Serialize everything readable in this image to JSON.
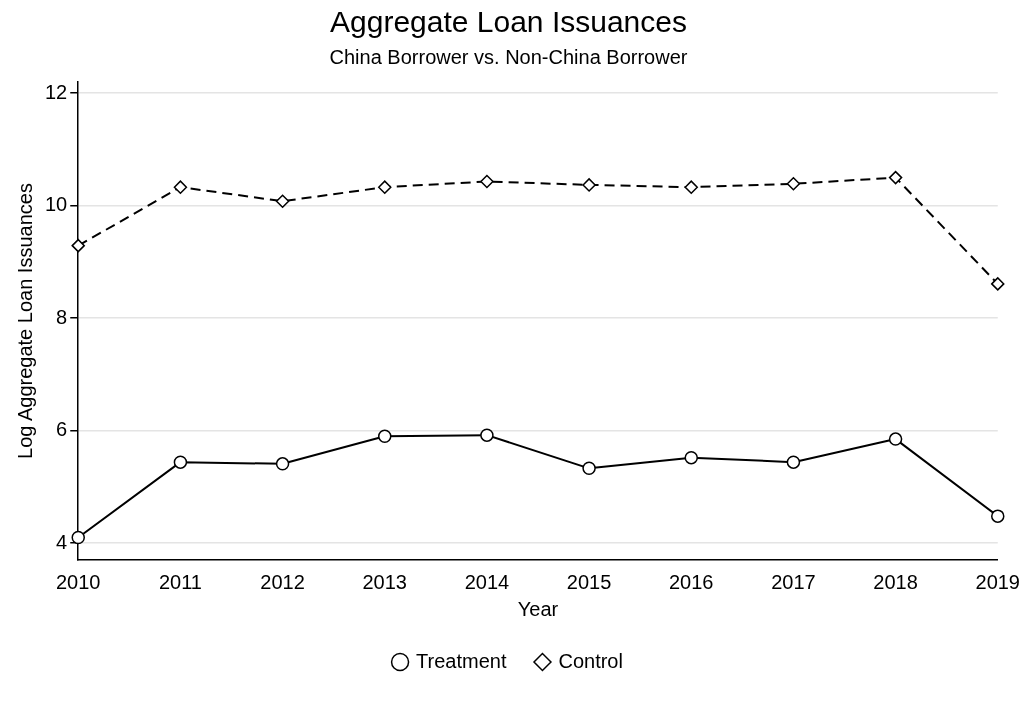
{
  "chart_data": {
    "type": "line",
    "title": "Aggregate Loan Issuances",
    "subtitle": "China Borrower vs. Non-China Borrower",
    "xlabel": "Year",
    "ylabel": "Log Aggregate Loan Issuances",
    "categories": [
      "2010",
      "2011",
      "2012",
      "2013",
      "2014",
      "2015",
      "2016",
      "2017",
      "2018",
      "2019"
    ],
    "series": [
      {
        "name": "Treatment",
        "color": "#000000",
        "marker": "circle",
        "line_style": "solid",
        "values": [
          4.1,
          5.44,
          5.41,
          5.9,
          5.92,
          5.33,
          5.52,
          5.44,
          5.85,
          4.48
        ]
      },
      {
        "name": "Control",
        "color": "#000000",
        "marker": "diamond",
        "line_style": "dashed",
        "values": [
          9.29,
          10.33,
          10.08,
          10.33,
          10.43,
          10.37,
          10.33,
          10.39,
          10.5,
          8.61
        ]
      }
    ],
    "ylim": [
      3.7,
      12.2
    ],
    "yticks": [
      4,
      6,
      8,
      10,
      12
    ],
    "grid": "y",
    "legend": "bottom"
  }
}
